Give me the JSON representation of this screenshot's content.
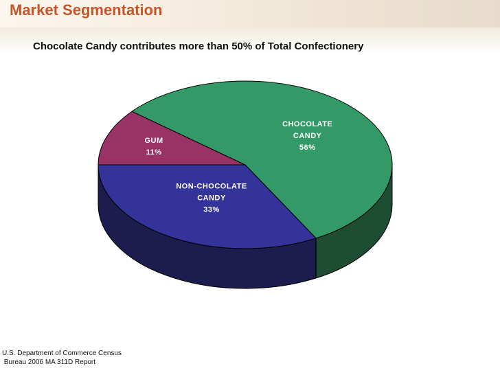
{
  "slide": {
    "title": "Market Segmentation",
    "subtitle": "Chocolate Candy contributes more than 50% of Total Confectionery",
    "source_line1": "U.S. Department of Commerce Census",
    "source_line2": " Bureau 2006 MA 311D Report"
  },
  "chart_data": {
    "type": "pie",
    "style": "3d",
    "title": "",
    "slices": [
      {
        "label_lines": [
          "CHOCOLATE",
          "CANDY"
        ],
        "pct_label": "56%",
        "value": 56,
        "color": "#339966",
        "side_color": "#1d4d33"
      },
      {
        "label_lines": [
          "NON-CHOCOLATE",
          "CANDY"
        ],
        "pct_label": "33%",
        "value": 33,
        "color": "#333399",
        "side_color": "#1c1c4f"
      },
      {
        "label_lines": [
          "GUM"
        ],
        "pct_label": "11%",
        "value": 11,
        "color": "#993366",
        "side_color": "#52203a"
      }
    ]
  },
  "colors": {
    "title": "#c4572a"
  }
}
